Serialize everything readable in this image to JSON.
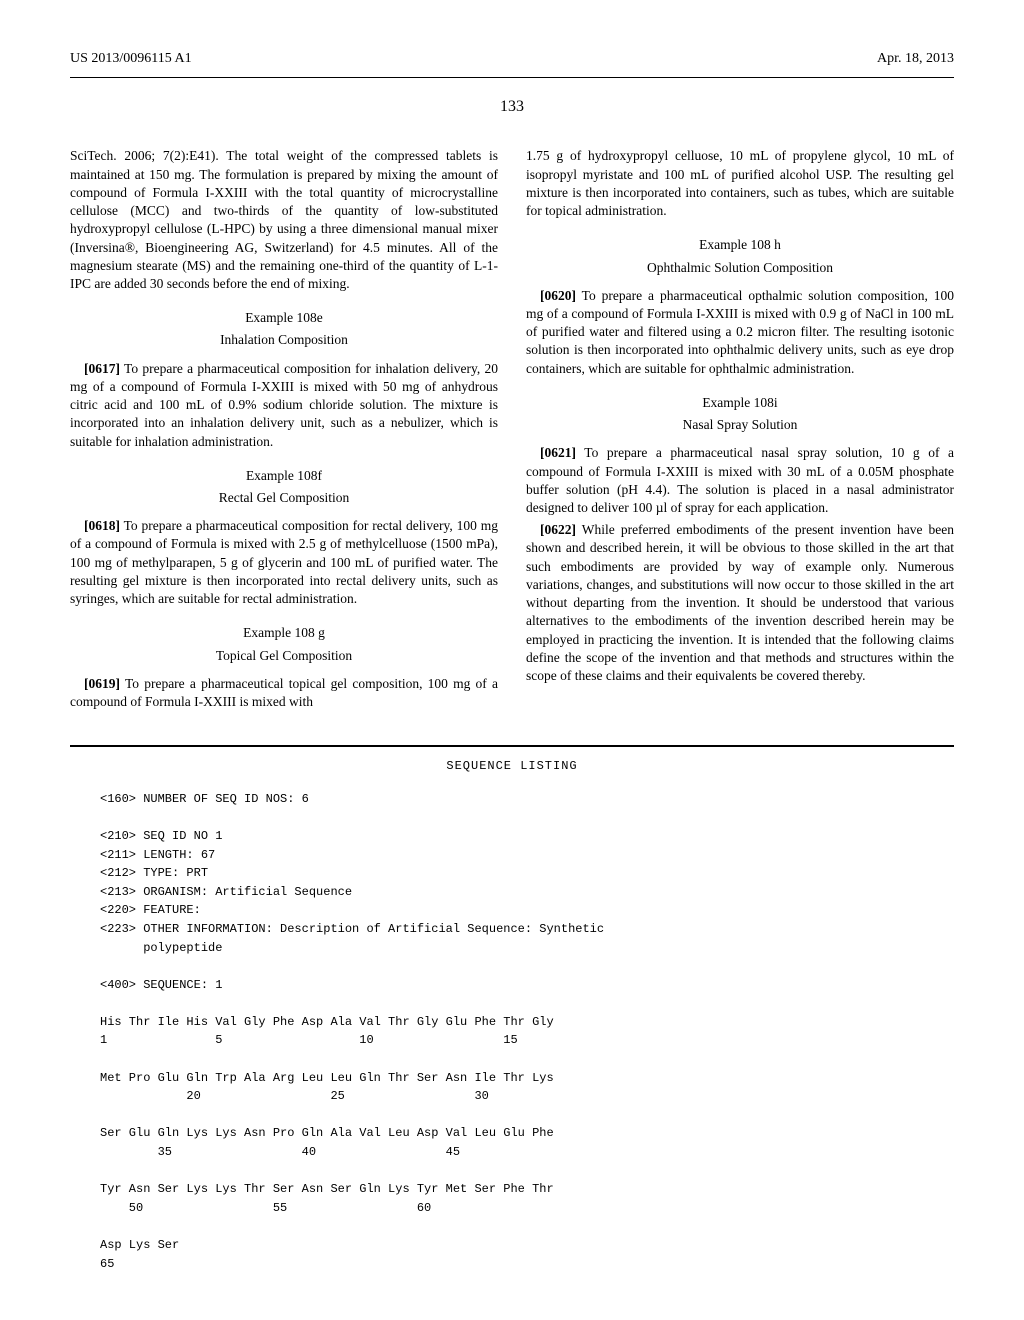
{
  "header": {
    "left": "US 2013/0096115 A1",
    "right": "Apr. 18, 2013",
    "page": "133"
  },
  "col1": {
    "p1": "SciTech. 2006; 7(2):E41). The total weight of the compressed tablets is maintained at 150 mg. The formulation is prepared by mixing the amount of compound of Formula I-XXIII with the total quantity of microcrystalline cellulose (MCC) and two-thirds of the quantity of low-substituted hydroxypropyl cellulose (L-HPC) by using a three dimensional manual mixer (Inversina®, Bioengineering AG, Switzerland) for 4.5 minutes. All of the magnesium stearate (MS) and the remaining one-third of the quantity of L-1-IPC are added 30 seconds before the end of mixing.",
    "ex108e_title": "Example 108e",
    "ex108e_sub": "Inhalation Composition",
    "p2_num": "[0617]",
    "p2": "  To prepare a pharmaceutical composition for inhalation delivery, 20 mg of a compound of Formula I-XXIII is mixed with 50 mg of anhydrous citric acid and 100 mL of 0.9% sodium chloride solution. The mixture is incorporated into an inhalation delivery unit, such as a nebulizer, which is suitable for inhalation administration.",
    "ex108f_title": "Example 108f",
    "ex108f_sub": "Rectal Gel Composition",
    "p3_num": "[0618]",
    "p3": "  To prepare a pharmaceutical composition for rectal delivery, 100 mg of a compound of Formula is mixed with 2.5 g of methylcelluose (1500 mPa), 100 mg of methylparapen, 5 g of glycerin and 100 mL of purified water. The resulting gel mixture is then incorporated into rectal delivery units, such as syringes, which are suitable for rectal administration.",
    "ex108g_title": "Example 108 g",
    "ex108g_sub": "Topical Gel Composition",
    "p4_num": "[0619]",
    "p4": "  To prepare a pharmaceutical topical gel composition, 100 mg of a compound of Formula I-XXIII is mixed with"
  },
  "col2": {
    "p1": "1.75 g of hydroxypropyl celluose, 10 mL of propylene glycol, 10 mL of isopropyl myristate and 100 mL of purified alcohol USP. The resulting gel mixture is then incorporated into containers, such as tubes, which are suitable for topical administration.",
    "ex108h_title": "Example 108 h",
    "ex108h_sub": "Ophthalmic Solution Composition",
    "p2_num": "[0620]",
    "p2": "  To prepare a pharmaceutical opthalmic solution composition, 100 mg of a compound of Formula I-XXIII is mixed with 0.9 g of NaCl in 100 mL of purified water and filtered using a 0.2 micron filter. The resulting isotonic solution is then incorporated into ophthalmic delivery units, such as eye drop containers, which are suitable for ophthalmic administration.",
    "ex108i_title": "Example 108i",
    "ex108i_sub": "Nasal Spray Solution",
    "p3_num": "[0621]",
    "p3": "  To prepare a pharmaceutical nasal spray solution, 10 g of a compound of Formula I-XXIII is mixed with 30 mL of a 0.05M phosphate buffer solution (pH 4.4). The solution is placed in a nasal administrator designed to deliver 100 µl of spray for each application.",
    "p4_num": "[0622]",
    "p4": "  While preferred embodiments of the present invention have been shown and described herein, it will be obvious to those skilled in the art that such embodiments are provided by way of example only. Numerous variations, changes, and substitutions will now occur to those skilled in the art without departing from the invention. It should be understood that various alternatives to the embodiments of the invention described herein may be employed in practicing the invention. It is intended that the following claims define the scope of the invention and that methods and structures within the scope of these claims and their equivalents be covered thereby."
  },
  "seq": {
    "title": "SEQUENCE LISTING",
    "l1": "<160> NUMBER OF SEQ ID NOS: 6",
    "l2": "<210> SEQ ID NO 1",
    "l3": "<211> LENGTH: 67",
    "l4": "<212> TYPE: PRT",
    "l5": "<213> ORGANISM: Artificial Sequence",
    "l6": "<220> FEATURE:",
    "l7": "<223> OTHER INFORMATION: Description of Artificial Sequence: Synthetic",
    "l8": "      polypeptide",
    "l9": "<400> SEQUENCE: 1",
    "s1a": "His Thr Ile His Val Gly Phe Asp Ala Val Thr Gly Glu Phe Thr Gly",
    "s1b": "1               5                   10                  15",
    "s2a": "Met Pro Glu Gln Trp Ala Arg Leu Leu Gln Thr Ser Asn Ile Thr Lys",
    "s2b": "            20                  25                  30",
    "s3a": "Ser Glu Gln Lys Lys Asn Pro Gln Ala Val Leu Asp Val Leu Glu Phe",
    "s3b": "        35                  40                  45",
    "s4a": "Tyr Asn Ser Lys Lys Thr Ser Asn Ser Gln Lys Tyr Met Ser Phe Thr",
    "s4b": "    50                  55                  60",
    "s5a": "Asp Lys Ser",
    "s5b": "65"
  }
}
